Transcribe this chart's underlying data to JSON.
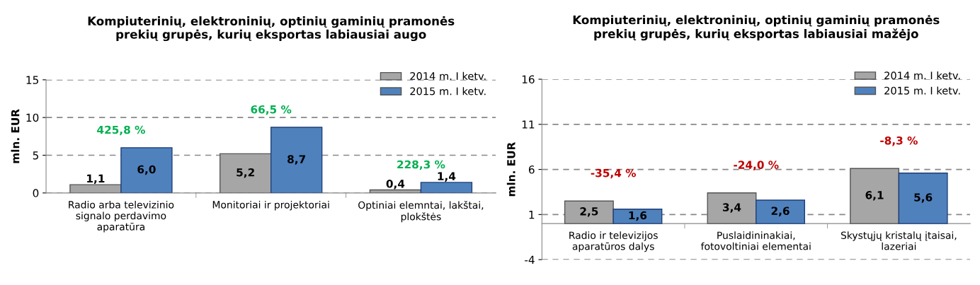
{
  "chart_data": [
    {
      "type": "bar",
      "title": "Kompiuterinių, elektroninių, optinių gaminių pramonės\nprekių grupės, kurių eksportas labiausiai augo",
      "ylabel": "mln. EUR",
      "categories": [
        "Radio arba televizinio\nsignalo perdavimo\naparatūra",
        "Monitoriai ir projektoriai",
        "Optiniai elemntai, lakštai,\nplokštės"
      ],
      "series": [
        {
          "name": "2014 m. I ketv.",
          "color": "#a6a6a6",
          "values": [
            1.1,
            5.2,
            0.4
          ]
        },
        {
          "name": "2015 m. I ketv.",
          "color": "#4f81bd",
          "values": [
            6.0,
            8.7,
            1.4
          ]
        }
      ],
      "value_labels": [
        [
          "1,1",
          "5,2",
          "0,4"
        ],
        [
          "6,0",
          "8,7",
          "1,4"
        ]
      ],
      "ylim": [
        0,
        15
      ],
      "yticks": [
        0,
        5,
        10,
        15
      ],
      "grid": "y",
      "legend": "top right",
      "annotations": [
        "425,8 %",
        "66,5 %",
        "228,3 %"
      ]
    },
    {
      "type": "bar",
      "title": "Kompiuterinių, elektroninių, optinių gaminių pramonės\nprekių grupės, kurių eksportas labiausiai mažėjo",
      "ylabel": "mln. EUR",
      "categories": [
        "Radio ir televizijos\naparatūros dalys",
        "Puslaidininakiai,\nfotovoltiniai elementai",
        "Skystųjų kristalų įtaisai,\nlazeriai"
      ],
      "series": [
        {
          "name": "2014 m. I ketv.",
          "color": "#a6a6a6",
          "values": [
            2.5,
            3.4,
            6.1
          ]
        },
        {
          "name": "2015 m. I ketv.",
          "color": "#4f81bd",
          "values": [
            1.6,
            2.6,
            5.6
          ]
        }
      ],
      "value_labels": [
        [
          "2,5",
          "3,4",
          "6,1"
        ],
        [
          "1,6",
          "2,6",
          "5,6"
        ]
      ],
      "ylim": [
        -4,
        16
      ],
      "yticks": [
        -4,
        1,
        6,
        11,
        16
      ],
      "grid": "y",
      "legend": "top right",
      "annotations": [
        "-35,4 %",
        "-24,0 %",
        "-8,3 %"
      ]
    }
  ]
}
